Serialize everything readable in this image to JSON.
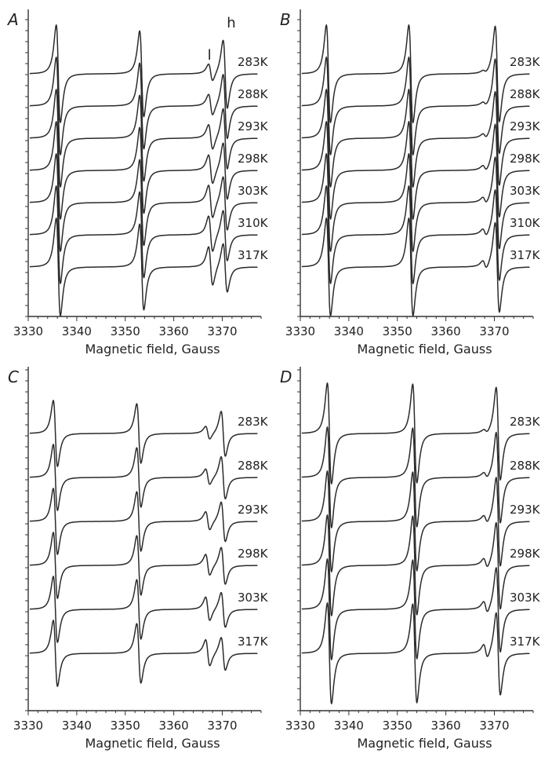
{
  "chart_data": [
    {
      "type": "line",
      "panel": "A",
      "xlabel": "Magnetic field, Gauss",
      "xticks": [
        3330,
        3340,
        3350,
        3360,
        3370
      ],
      "xlim": [
        3330,
        3378
      ],
      "peak_labels": [
        "l",
        "h"
      ],
      "series": [
        {
          "name": "283K",
          "peaks": [
            {
              "center": 3336.2,
              "amp": 1.0
            },
            {
              "center": 3353.4,
              "amp": 0.88
            },
            {
              "center": 3367.6,
              "amp": 0.18
            },
            {
              "center": 3370.6,
              "amp": 0.7
            }
          ]
        },
        {
          "name": "288K",
          "peaks": [
            {
              "center": 3336.2,
              "amp": 1.0
            },
            {
              "center": 3353.4,
              "amp": 0.88
            },
            {
              "center": 3367.6,
              "amp": 0.22
            },
            {
              "center": 3370.6,
              "amp": 0.66
            }
          ]
        },
        {
          "name": "293K",
          "peaks": [
            {
              "center": 3336.2,
              "amp": 1.0
            },
            {
              "center": 3353.4,
              "amp": 0.88
            },
            {
              "center": 3367.6,
              "amp": 0.26
            },
            {
              "center": 3370.6,
              "amp": 0.62
            }
          ]
        },
        {
          "name": "298K",
          "peaks": [
            {
              "center": 3336.2,
              "amp": 1.0
            },
            {
              "center": 3353.4,
              "amp": 0.88
            },
            {
              "center": 3367.6,
              "amp": 0.3
            },
            {
              "center": 3370.6,
              "amp": 0.58
            }
          ]
        },
        {
          "name": "303K",
          "peaks": [
            {
              "center": 3336.2,
              "amp": 1.0
            },
            {
              "center": 3353.4,
              "amp": 0.88
            },
            {
              "center": 3367.6,
              "amp": 0.34
            },
            {
              "center": 3370.6,
              "amp": 0.55
            }
          ]
        },
        {
          "name": "310K",
          "peaks": [
            {
              "center": 3336.2,
              "amp": 1.0
            },
            {
              "center": 3353.4,
              "amp": 0.88
            },
            {
              "center": 3367.6,
              "amp": 0.37
            },
            {
              "center": 3370.6,
              "amp": 0.52
            }
          ]
        },
        {
          "name": "317K",
          "peaks": [
            {
              "center": 3336.2,
              "amp": 1.0
            },
            {
              "center": 3353.4,
              "amp": 0.88
            },
            {
              "center": 3367.6,
              "amp": 0.4
            },
            {
              "center": 3370.6,
              "amp": 0.5
            }
          ]
        }
      ]
    },
    {
      "type": "line",
      "panel": "B",
      "xlabel": "Magnetic field, Gauss",
      "xticks": [
        3330,
        3340,
        3350,
        3360,
        3370
      ],
      "xlim": [
        3330,
        3378
      ],
      "peak_labels": [],
      "series": [
        {
          "name": "283K",
          "peaks": [
            {
              "center": 3335.8,
              "amp": 1.0
            },
            {
              "center": 3352.8,
              "amp": 1.0
            },
            {
              "center": 3368.0,
              "amp": 0.03
            },
            {
              "center": 3370.6,
              "amp": 0.98
            }
          ]
        },
        {
          "name": "288K",
          "peaks": [
            {
              "center": 3335.8,
              "amp": 1.0
            },
            {
              "center": 3352.8,
              "amp": 1.0
            },
            {
              "center": 3368.0,
              "amp": 0.04
            },
            {
              "center": 3370.6,
              "amp": 0.97
            }
          ]
        },
        {
          "name": "293K",
          "peaks": [
            {
              "center": 3335.8,
              "amp": 1.0
            },
            {
              "center": 3352.8,
              "amp": 1.0
            },
            {
              "center": 3368.0,
              "amp": 0.05
            },
            {
              "center": 3370.6,
              "amp": 0.96
            }
          ]
        },
        {
          "name": "298K",
          "peaks": [
            {
              "center": 3335.8,
              "amp": 1.0
            },
            {
              "center": 3352.8,
              "amp": 1.0
            },
            {
              "center": 3368.0,
              "amp": 0.06
            },
            {
              "center": 3370.6,
              "amp": 0.95
            }
          ]
        },
        {
          "name": "303K",
          "peaks": [
            {
              "center": 3335.8,
              "amp": 1.0
            },
            {
              "center": 3352.8,
              "amp": 1.0
            },
            {
              "center": 3368.0,
              "amp": 0.07
            },
            {
              "center": 3370.6,
              "amp": 0.94
            }
          ]
        },
        {
          "name": "310K",
          "peaks": [
            {
              "center": 3335.8,
              "amp": 1.0
            },
            {
              "center": 3352.8,
              "amp": 1.0
            },
            {
              "center": 3368.0,
              "amp": 0.08
            },
            {
              "center": 3370.6,
              "amp": 0.93
            }
          ]
        },
        {
          "name": "317K",
          "peaks": [
            {
              "center": 3335.8,
              "amp": 1.0
            },
            {
              "center": 3352.8,
              "amp": 1.0
            },
            {
              "center": 3368.0,
              "amp": 0.09
            },
            {
              "center": 3370.6,
              "amp": 0.92
            }
          ]
        }
      ]
    },
    {
      "type": "line",
      "panel": "C",
      "xlabel": "Magnetic field, Gauss",
      "xticks": [
        3330,
        3340,
        3350,
        3360,
        3370
      ],
      "xlim": [
        3330,
        3378
      ],
      "peak_labels": [],
      "series": [
        {
          "name": "283K",
          "peaks": [
            {
              "center": 3335.6,
              "amp": 1.0
            },
            {
              "center": 3352.8,
              "amp": 0.9
            },
            {
              "center": 3367.0,
              "amp": 0.2
            },
            {
              "center": 3370.2,
              "amp": 0.68
            }
          ]
        },
        {
          "name": "288K",
          "peaks": [
            {
              "center": 3335.6,
              "amp": 1.0
            },
            {
              "center": 3352.8,
              "amp": 0.9
            },
            {
              "center": 3367.0,
              "amp": 0.24
            },
            {
              "center": 3370.2,
              "amp": 0.64
            }
          ]
        },
        {
          "name": "293K",
          "peaks": [
            {
              "center": 3335.6,
              "amp": 1.0
            },
            {
              "center": 3352.8,
              "amp": 0.9
            },
            {
              "center": 3367.0,
              "amp": 0.28
            },
            {
              "center": 3370.2,
              "amp": 0.6
            }
          ]
        },
        {
          "name": "298K",
          "peaks": [
            {
              "center": 3335.6,
              "amp": 1.0
            },
            {
              "center": 3352.8,
              "amp": 0.9
            },
            {
              "center": 3367.0,
              "amp": 0.32
            },
            {
              "center": 3370.2,
              "amp": 0.56
            }
          ]
        },
        {
          "name": "303K",
          "peaks": [
            {
              "center": 3335.6,
              "amp": 1.0
            },
            {
              "center": 3352.8,
              "amp": 0.9
            },
            {
              "center": 3367.0,
              "amp": 0.36
            },
            {
              "center": 3370.2,
              "amp": 0.53
            }
          ]
        },
        {
          "name": "317K",
          "peaks": [
            {
              "center": 3335.6,
              "amp": 1.0
            },
            {
              "center": 3352.8,
              "amp": 0.9
            },
            {
              "center": 3367.0,
              "amp": 0.4
            },
            {
              "center": 3370.2,
              "amp": 0.5
            }
          ]
        }
      ]
    },
    {
      "type": "line",
      "panel": "D",
      "xlabel": "Magnetic field, Gauss",
      "xticks": [
        3330,
        3340,
        3350,
        3360,
        3370
      ],
      "xlim": [
        3330,
        3378
      ],
      "peak_labels": [],
      "series": [
        {
          "name": "283K",
          "peaks": [
            {
              "center": 3336.0,
              "amp": 1.0
            },
            {
              "center": 3353.6,
              "amp": 0.98
            },
            {
              "center": 3368.2,
              "amp": 0.04
            },
            {
              "center": 3370.8,
              "amp": 0.92
            }
          ]
        },
        {
          "name": "288K",
          "peaks": [
            {
              "center": 3336.0,
              "amp": 1.0
            },
            {
              "center": 3353.6,
              "amp": 0.98
            },
            {
              "center": 3368.2,
              "amp": 0.06
            },
            {
              "center": 3370.8,
              "amp": 0.9
            }
          ]
        },
        {
          "name": "293K",
          "peaks": [
            {
              "center": 3336.0,
              "amp": 1.0
            },
            {
              "center": 3353.6,
              "amp": 0.98
            },
            {
              "center": 3368.2,
              "amp": 0.08
            },
            {
              "center": 3370.8,
              "amp": 0.88
            }
          ]
        },
        {
          "name": "298K",
          "peaks": [
            {
              "center": 3336.0,
              "amp": 1.0
            },
            {
              "center": 3353.6,
              "amp": 0.98
            },
            {
              "center": 3368.2,
              "amp": 0.1
            },
            {
              "center": 3370.8,
              "amp": 0.86
            }
          ]
        },
        {
          "name": "303K",
          "peaks": [
            {
              "center": 3336.0,
              "amp": 1.0
            },
            {
              "center": 3353.6,
              "amp": 0.98
            },
            {
              "center": 3368.2,
              "amp": 0.12
            },
            {
              "center": 3370.8,
              "amp": 0.84
            }
          ]
        },
        {
          "name": "317K",
          "peaks": [
            {
              "center": 3336.0,
              "amp": 1.0
            },
            {
              "center": 3353.6,
              "amp": 0.98
            },
            {
              "center": 3368.2,
              "amp": 0.14
            },
            {
              "center": 3370.8,
              "amp": 0.82
            }
          ]
        }
      ]
    }
  ]
}
